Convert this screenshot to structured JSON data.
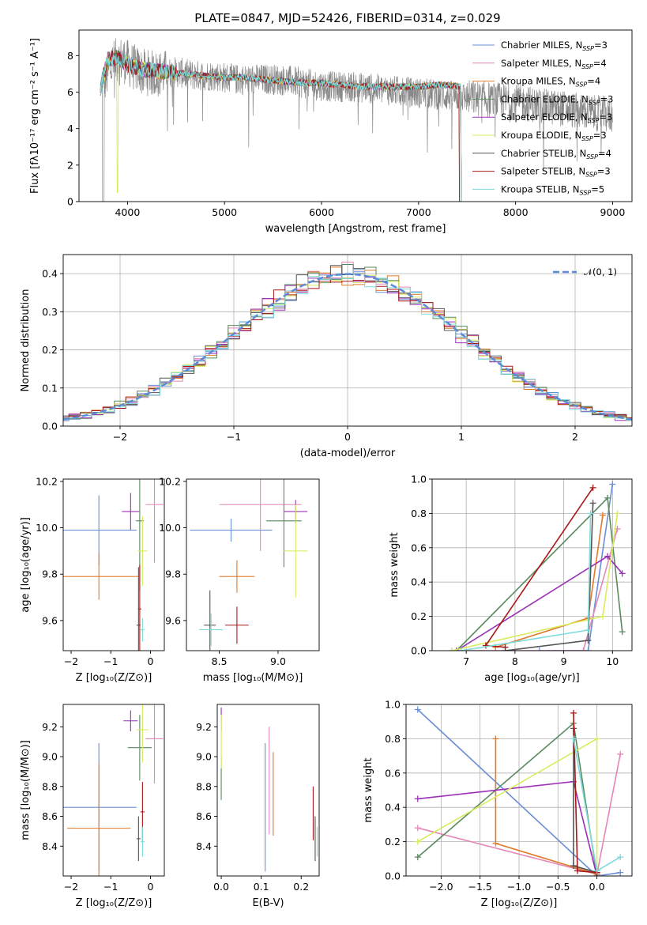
{
  "figure": {
    "title": "PLATE=0847, MJD=52426, FIBERID=0314, z=0.029"
  },
  "series_colors": {
    "chabrier_miles": "#6a8ed6",
    "salpeter_miles": "#e487b6",
    "kroupa_miles": "#e07b2c",
    "chabrier_elodie": "#5a8a5e",
    "salpeter_elodie": "#9b30b8",
    "kroupa_elodie": "#d8ec5c",
    "chabrier_stelib": "#555555",
    "salpeter_stelib": "#a81818",
    "kroupa_stelib": "#7fdada",
    "data": "#888888",
    "gaussian": "#5b8bd9"
  },
  "chart_data": [
    {
      "id": "spectrum",
      "type": "line",
      "title": "PLATE=0847, MJD=52426, FIBERID=0314, z=0.029",
      "xlabel": "wavelength [Angstrom, rest frame]",
      "ylabel": "Flux [fλ10⁻¹⁷ erg cm⁻² s⁻¹ A⁻¹]",
      "xlim": [
        3500,
        9200
      ],
      "ylim": [
        0,
        9.4
      ],
      "xticks": [
        4000,
        5000,
        6000,
        7000,
        8000,
        9000
      ],
      "yticks": [
        0,
        2,
        4,
        6,
        8
      ],
      "grid": false,
      "legend_position": "top-right",
      "legend": [
        {
          "key": "chabrier_miles",
          "label": "Chabrier MILES, N",
          "sub": "SSP",
          "suffix": "=3"
        },
        {
          "key": "salpeter_miles",
          "label": "Salpeter MILES, N",
          "sub": "SSP",
          "suffix": "=4"
        },
        {
          "key": "kroupa_miles",
          "label": "Kroupa MILES, N",
          "sub": "SSP",
          "suffix": "=4"
        },
        {
          "key": "chabrier_elodie",
          "label": "Chabrier ELODIE, N",
          "sub": "SSP",
          "suffix": "=3"
        },
        {
          "key": "salpeter_elodie",
          "label": "Salpeter ELODIE, N",
          "sub": "SSP",
          "suffix": "=3"
        },
        {
          "key": "kroupa_elodie",
          "label": "Kroupa ELODIE, N",
          "sub": "SSP",
          "suffix": "=3"
        },
        {
          "key": "chabrier_stelib",
          "label": "Chabrier STELIB, N",
          "sub": "SSP",
          "suffix": "=4"
        },
        {
          "key": "salpeter_stelib",
          "label": "Salpeter STELIB, N",
          "sub": "SSP",
          "suffix": "=3"
        },
        {
          "key": "kroupa_stelib",
          "label": "Kroupa STELIB, N",
          "sub": "SSP",
          "suffix": "=5"
        }
      ],
      "data_trend": {
        "x": [
          3750,
          3850,
          3950,
          4050,
          4150,
          4300,
          4500,
          4700,
          4900,
          5100,
          5300,
          5500,
          5700,
          5900,
          6100,
          6300,
          6500,
          6700,
          6900,
          7100,
          7300,
          7500,
          7700,
          7900,
          8100,
          8300,
          8500,
          8700,
          8900,
          9000
        ],
        "y": [
          6.5,
          7.6,
          7.8,
          7.4,
          7.1,
          7.0,
          7.1,
          6.9,
          6.9,
          6.7,
          6.7,
          6.7,
          6.6,
          6.4,
          6.3,
          6.3,
          6.2,
          6.1,
          6.0,
          5.9,
          5.8,
          5.7,
          5.6,
          5.5,
          5.4,
          5.2,
          5.1,
          4.9,
          4.8,
          4.7
        ]
      },
      "model_trend": {
        "x": [
          3720,
          3800,
          3900,
          4000,
          4200,
          4400,
          4600,
          4800,
          5000,
          5200,
          5400,
          5600,
          5800,
          6000,
          6200,
          6400,
          6600,
          6800,
          7000,
          7200,
          7300,
          7420
        ],
        "y": [
          6.2,
          7.8,
          7.9,
          7.5,
          7.2,
          7.1,
          7.0,
          6.9,
          6.8,
          6.8,
          6.7,
          6.6,
          6.5,
          6.5,
          6.4,
          6.3,
          6.3,
          6.3,
          6.3,
          6.4,
          6.4,
          6.3
        ]
      }
    },
    {
      "id": "residuals",
      "type": "histogram",
      "xlabel": "(data-model)/error",
      "ylabel": "Normed distribution",
      "xlim": [
        -2.5,
        2.5
      ],
      "ylim": [
        0,
        0.45
      ],
      "xticks": [
        -2,
        -1,
        0,
        1,
        2
      ],
      "yticks": [
        0.0,
        0.1,
        0.2,
        0.3,
        0.4
      ],
      "grid": true,
      "legend_position": "top-right",
      "gaussian_label": "𝒩(0, 1)",
      "bin_width": 0.1
    },
    {
      "id": "age_vs_Z",
      "type": "errorbar",
      "xlabel": "Z [log₁₀(Z/Z⊙)]",
      "ylabel": "age  [log₁₀(age/yr)]",
      "xlim": [
        -2.2,
        0.35
      ],
      "ylim": [
        9.47,
        10.21
      ],
      "xticks": [
        -2,
        -1,
        0
      ],
      "yticks": [
        9.6,
        9.8,
        10.0,
        10.2
      ],
      "grid": false,
      "points": [
        {
          "key": "chabrier_miles",
          "x": -1.3,
          "y": 9.99,
          "xerr": 0.95,
          "yerr": 0.15
        },
        {
          "key": "salpeter_miles",
          "x": 0.1,
          "y": 10.1,
          "xerr": 0.22,
          "yerr": 0.25
        },
        {
          "key": "kroupa_miles",
          "x": -1.3,
          "y": 9.79,
          "xerr": 1.0,
          "yerr": 0.1
        },
        {
          "key": "chabrier_elodie",
          "x": -0.27,
          "y": 10.03,
          "xerr": 0.1,
          "yerr": 0.3
        },
        {
          "key": "salpeter_elodie",
          "x": -0.5,
          "y": 10.07,
          "xerr": 0.22,
          "yerr": 0.08
        },
        {
          "key": "kroupa_elodie",
          "x": -0.2,
          "y": 9.9,
          "xerr": 0.12,
          "yerr": 0.15
        },
        {
          "key": "chabrier_stelib",
          "x": -0.3,
          "y": 9.58,
          "xerr": 0.05,
          "yerr": 0.25
        },
        {
          "key": "salpeter_stelib",
          "x": -0.27,
          "y": 9.65,
          "xerr": 0.04,
          "yerr": 0.19
        },
        {
          "key": "kroupa_stelib",
          "x": -0.2,
          "y": 9.56,
          "xerr": 0.05,
          "yerr": 0.05
        }
      ]
    },
    {
      "id": "age_vs_mass",
      "type": "errorbar",
      "xlabel": "mass [log₁₀(M/M⊙)]",
      "ylabel": "",
      "xlim": [
        8.22,
        9.35
      ],
      "ylim": [
        9.47,
        10.21
      ],
      "xticks": [
        8.5,
        9.0
      ],
      "yticks": [
        9.6,
        9.8,
        10.0,
        10.2
      ],
      "grid": false,
      "points": [
        {
          "key": "chabrier_miles",
          "x": 8.6,
          "y": 9.99,
          "xerr": 0.35,
          "yerr": 0.05
        },
        {
          "key": "salpeter_miles",
          "x": 8.85,
          "y": 10.1,
          "xerr": 0.35,
          "yerr": 0.2
        },
        {
          "key": "kroupa_miles",
          "x": 8.65,
          "y": 9.79,
          "xerr": 0.15,
          "yerr": 0.07
        },
        {
          "key": "chabrier_elodie",
          "x": 9.05,
          "y": 10.03,
          "xerr": 0.15,
          "yerr": 0.2
        },
        {
          "key": "salpeter_elodie",
          "x": 9.15,
          "y": 10.07,
          "xerr": 0.1,
          "yerr": 0.05
        },
        {
          "key": "kroupa_elodie",
          "x": 9.15,
          "y": 9.9,
          "xerr": 0.1,
          "yerr": 0.2
        },
        {
          "key": "chabrier_stelib",
          "x": 8.42,
          "y": 9.58,
          "xerr": 0.05,
          "yerr": 0.15
        },
        {
          "key": "salpeter_stelib",
          "x": 8.65,
          "y": 9.58,
          "xerr": 0.1,
          "yerr": 0.08
        },
        {
          "key": "kroupa_stelib",
          "x": 8.43,
          "y": 9.56,
          "xerr": 0.1,
          "yerr": 0.07
        }
      ]
    },
    {
      "id": "weight_vs_age",
      "type": "line",
      "xlabel": "age  [log₁₀(age/yr)]",
      "ylabel": "mass weight",
      "xlim": [
        6.3,
        10.4
      ],
      "ylim": [
        0,
        1.0
      ],
      "xticks": [
        7,
        8,
        9,
        10
      ],
      "yticks": [
        0.0,
        0.2,
        0.4,
        0.6,
        0.8,
        1.0
      ],
      "grid": true,
      "series": [
        {
          "key": "chabrier_miles",
          "x": [
            8.5,
            9.5,
            10.0
          ],
          "y": [
            0.0,
            0.0,
            0.97
          ]
        },
        {
          "key": "salpeter_miles",
          "x": [
            6.7,
            9.4,
            10.1
          ],
          "y": [
            0.0,
            0.0,
            0.71
          ]
        },
        {
          "key": "kroupa_miles",
          "x": [
            7.6,
            9.5,
            9.8
          ],
          "y": [
            0.02,
            0.19,
            0.79
          ]
        },
        {
          "key": "chabrier_elodie",
          "x": [
            6.8,
            9.9,
            10.2
          ],
          "y": [
            0.0,
            0.89,
            0.11
          ]
        },
        {
          "key": "salpeter_elodie",
          "x": [
            6.8,
            9.9,
            10.2
          ],
          "y": [
            0.0,
            0.55,
            0.45
          ]
        },
        {
          "key": "kroupa_elodie",
          "x": [
            6.7,
            9.8,
            10.1
          ],
          "y": [
            0.0,
            0.2,
            0.8
          ]
        },
        {
          "key": "chabrier_stelib",
          "x": [
            7.8,
            9.5,
            9.6
          ],
          "y": [
            0.0,
            0.06,
            0.86
          ]
        },
        {
          "key": "salpeter_stelib",
          "x": [
            7.8,
            7.4,
            9.6
          ],
          "y": [
            0.02,
            0.03,
            0.95
          ]
        },
        {
          "key": "kroupa_stelib",
          "x": [
            6.9,
            9.5,
            9.55
          ],
          "y": [
            0.0,
            0.12,
            0.8
          ]
        }
      ]
    },
    {
      "id": "mass_vs_Z",
      "type": "errorbar",
      "xlabel": "Z [log₁₀(Z/Z⊙)]",
      "ylabel": "mass [log₁₀(M/M⊙)]",
      "xlim": [
        -2.2,
        0.35
      ],
      "ylim": [
        8.2,
        9.35
      ],
      "xticks": [
        -2,
        -1,
        0
      ],
      "yticks": [
        8.4,
        8.6,
        8.8,
        9.0,
        9.2
      ],
      "grid": false,
      "points": [
        {
          "key": "chabrier_miles",
          "x": -1.3,
          "y": 8.66,
          "xerr": 0.95,
          "yerr": 0.43
        },
        {
          "key": "salpeter_miles",
          "x": 0.1,
          "y": 9.12,
          "xerr": 0.22,
          "yerr": 0.3
        },
        {
          "key": "kroupa_miles",
          "x": -1.3,
          "y": 8.52,
          "xerr": 0.8,
          "yerr": 0.43
        },
        {
          "key": "chabrier_elodie",
          "x": -0.27,
          "y": 9.06,
          "xerr": 0.3,
          "yerr": 0.22
        },
        {
          "key": "salpeter_elodie",
          "x": -0.5,
          "y": 9.24,
          "xerr": 0.18,
          "yerr": 0.07
        },
        {
          "key": "kroupa_elodie",
          "x": -0.2,
          "y": 9.18,
          "xerr": 0.15,
          "yerr": 0.22
        },
        {
          "key": "chabrier_stelib",
          "x": -0.3,
          "y": 8.45,
          "xerr": 0.05,
          "yerr": 0.15
        },
        {
          "key": "salpeter_stelib",
          "x": -0.2,
          "y": 8.63,
          "xerr": 0.05,
          "yerr": 0.2
        },
        {
          "key": "kroupa_stelib",
          "x": -0.2,
          "y": 8.43,
          "xerr": 0.05,
          "yerr": 0.1
        }
      ]
    },
    {
      "id": "mass_vs_ebv",
      "type": "errorbar",
      "xlabel": "E(B-V)",
      "ylabel": "",
      "xlim": [
        -0.01,
        0.245
      ],
      "ylim": [
        8.2,
        9.35
      ],
      "xticks": [
        0.0,
        0.1,
        0.2
      ],
      "yticks": [
        8.4,
        8.6,
        8.8,
        9.0,
        9.2
      ],
      "grid": false,
      "points": [
        {
          "key": "chabrier_miles",
          "x": 0.11,
          "y": 8.66,
          "xerr": 0.0,
          "yerr": 0.43
        },
        {
          "key": "salpeter_miles",
          "x": 0.12,
          "y": 8.84,
          "xerr": 0.0,
          "yerr": 0.36
        },
        {
          "key": "kroupa_miles",
          "x": 0.13,
          "y": 8.75,
          "xerr": 0.0,
          "yerr": 0.28
        },
        {
          "key": "chabrier_elodie",
          "x": 0.0,
          "y": 8.86,
          "xerr": 0.0,
          "yerr": 0.15
        },
        {
          "key": "salpeter_elodie",
          "x": 0.0,
          "y": 9.25,
          "xerr": 0.0,
          "yerr": 0.08
        },
        {
          "key": "kroupa_elodie",
          "x": 0.0,
          "y": 9.1,
          "xerr": 0.0,
          "yerr": 0.18
        },
        {
          "key": "chabrier_stelib",
          "x": 0.235,
          "y": 8.45,
          "xerr": 0.0,
          "yerr": 0.15
        },
        {
          "key": "salpeter_stelib",
          "x": 0.23,
          "y": 8.62,
          "xerr": 0.0,
          "yerr": 0.18
        },
        {
          "key": "kroupa_stelib",
          "x": 0.24,
          "y": 8.43,
          "xerr": 0.0,
          "yerr": 0.1
        }
      ]
    },
    {
      "id": "weight_vs_Z",
      "type": "line",
      "xlabel": "Z [log₁₀(Z/Z⊙)]",
      "ylabel": "mass weight",
      "xlim": [
        -2.45,
        0.45
      ],
      "ylim": [
        0,
        1.0
      ],
      "xticks": [
        -2.0,
        -1.5,
        -1.0,
        -0.5,
        0.0
      ],
      "yticks": [
        0.0,
        0.2,
        0.4,
        0.6,
        0.8,
        1.0
      ],
      "grid": true,
      "series": [
        {
          "key": "chabrier_miles",
          "x": [
            -2.3,
            0.0,
            0.3
          ],
          "y": [
            0.97,
            0.0,
            0.02
          ]
        },
        {
          "key": "salpeter_miles",
          "x": [
            -2.3,
            0.0,
            0.3
          ],
          "y": [
            0.28,
            0.01,
            0.71
          ]
        },
        {
          "key": "kroupa_miles",
          "x": [
            -1.3,
            -1.3,
            0.0
          ],
          "y": [
            0.8,
            0.19,
            0.01
          ]
        },
        {
          "key": "chabrier_elodie",
          "x": [
            -2.3,
            -0.3,
            0.0
          ],
          "y": [
            0.11,
            0.89,
            0.0
          ]
        },
        {
          "key": "salpeter_elodie",
          "x": [
            -2.3,
            -0.3,
            0.0
          ],
          "y": [
            0.45,
            0.55,
            0.0
          ]
        },
        {
          "key": "kroupa_elodie",
          "x": [
            -2.3,
            0.0,
            0.0
          ],
          "y": [
            0.2,
            0.8,
            0.0
          ]
        },
        {
          "key": "chabrier_stelib",
          "x": [
            -0.3,
            -0.3,
            0.0
          ],
          "y": [
            0.86,
            0.06,
            0.02
          ]
        },
        {
          "key": "salpeter_stelib",
          "x": [
            -0.3,
            -0.25,
            0.0
          ],
          "y": [
            0.95,
            0.03,
            0.02
          ]
        },
        {
          "key": "kroupa_stelib",
          "x": [
            0.3,
            0.0,
            -0.3
          ],
          "y": [
            0.11,
            0.03,
            0.8
          ]
        }
      ]
    }
  ]
}
